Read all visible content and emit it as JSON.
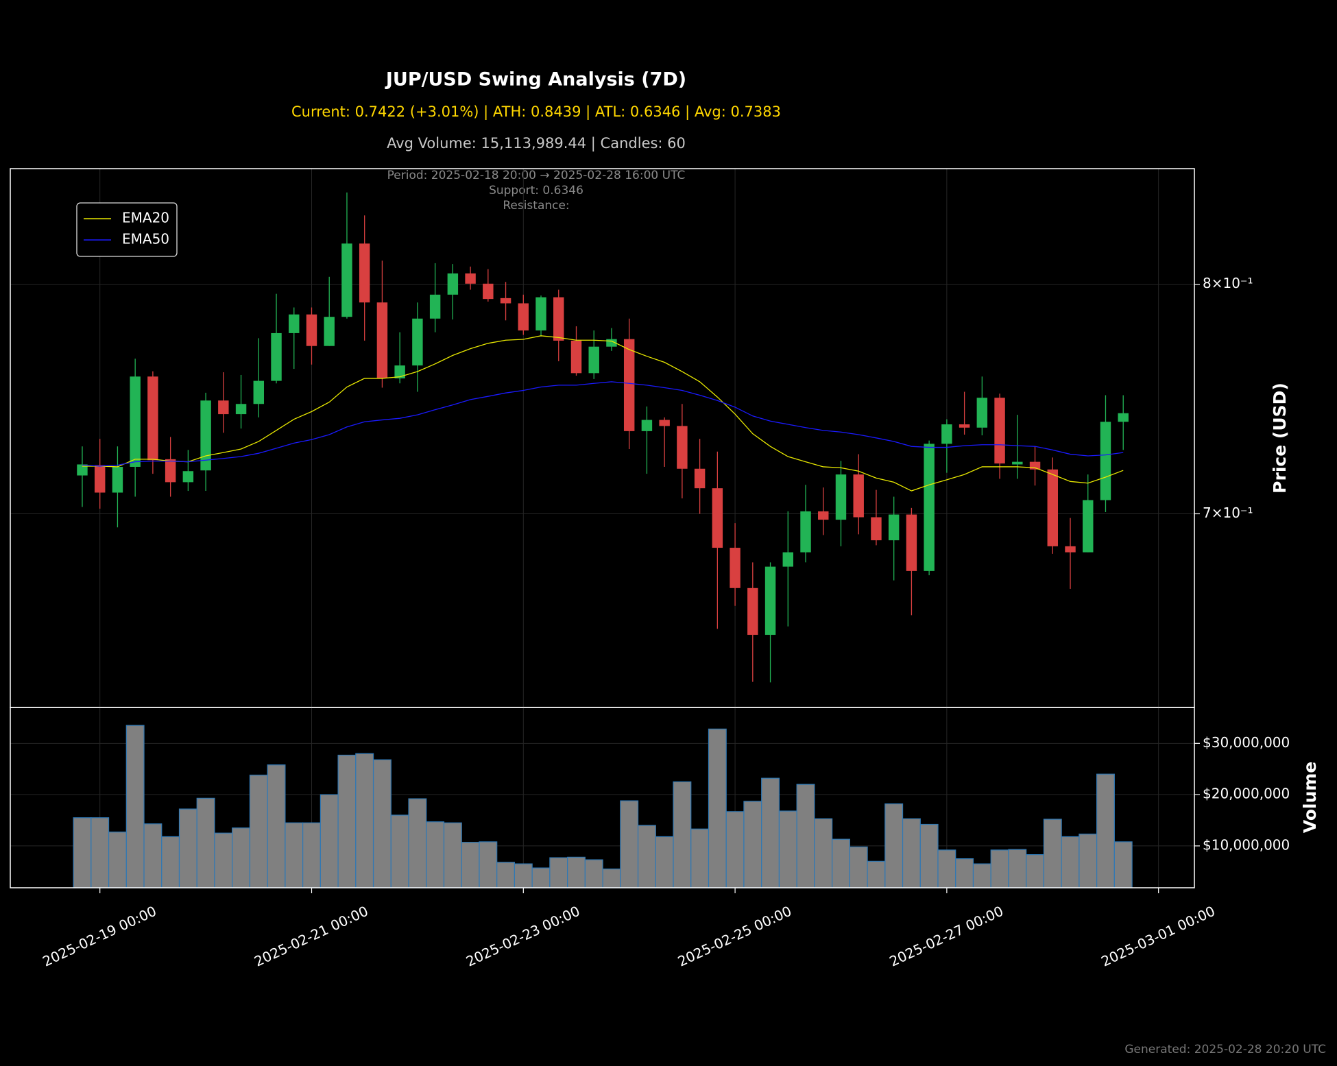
{
  "chart_data": [
    {
      "type": "candlestick",
      "title": "JUP/USD Swing Analysis (7D)",
      "subtitle": "Current: 0.7422 (+3.01%) | ATH: 0.8439 | ATL: 0.6346 | Avg: 0.7383",
      "subtitle2": "Avg Volume: 15,113,989.44 | Candles: 60",
      "annotations": [
        "Period: 2025-02-18 20:00 → 2025-02-28 16:00 UTC",
        "Support: 0.6346",
        "Resistance:"
      ],
      "footnote": "Generated: 2025-02-28 20:20 UTC",
      "ylabel": "Price (USD)",
      "x": [
        "2025-02-18 20:00",
        "2025-02-19 00:00",
        "2025-02-19 04:00",
        "2025-02-19 08:00",
        "2025-02-19 12:00",
        "2025-02-19 16:00",
        "2025-02-19 20:00",
        "2025-02-20 00:00",
        "2025-02-20 04:00",
        "2025-02-20 08:00",
        "2025-02-20 12:00",
        "2025-02-20 16:00",
        "2025-02-20 20:00",
        "2025-02-21 00:00",
        "2025-02-21 04:00",
        "2025-02-21 08:00",
        "2025-02-21 12:00",
        "2025-02-21 16:00",
        "2025-02-21 20:00",
        "2025-02-22 00:00",
        "2025-02-22 04:00",
        "2025-02-22 08:00",
        "2025-02-22 12:00",
        "2025-02-22 16:00",
        "2025-02-22 20:00",
        "2025-02-23 00:00",
        "2025-02-23 04:00",
        "2025-02-23 08:00",
        "2025-02-23 12:00",
        "2025-02-23 16:00",
        "2025-02-23 20:00",
        "2025-02-24 00:00",
        "2025-02-24 04:00",
        "2025-02-24 08:00",
        "2025-02-24 12:00",
        "2025-02-24 16:00",
        "2025-02-24 20:00",
        "2025-02-25 00:00",
        "2025-02-25 04:00",
        "2025-02-25 08:00",
        "2025-02-25 12:00",
        "2025-02-25 16:00",
        "2025-02-25 20:00",
        "2025-02-26 00:00",
        "2025-02-26 04:00",
        "2025-02-26 08:00",
        "2025-02-26 12:00",
        "2025-02-26 16:00",
        "2025-02-26 20:00",
        "2025-02-27 00:00",
        "2025-02-27 04:00",
        "2025-02-27 08:00",
        "2025-02-27 12:00",
        "2025-02-27 16:00",
        "2025-02-27 20:00",
        "2025-02-28 00:00",
        "2025-02-28 04:00",
        "2025-02-28 08:00",
        "2025-02-28 12:00",
        "2025-02-28 16:00"
      ],
      "open": [
        0.7158,
        0.7201,
        0.7087,
        0.7194,
        0.7582,
        0.7226,
        0.713,
        0.7179,
        0.7477,
        0.7418,
        0.7462,
        0.7563,
        0.7776,
        0.7861,
        0.7718,
        0.785,
        0.8192,
        0.7916,
        0.7574,
        0.7631,
        0.7842,
        0.7952,
        0.8051,
        0.8003,
        0.7936,
        0.7912,
        0.7788,
        0.794,
        0.7742,
        0.7597,
        0.7715,
        0.7749,
        0.7345,
        0.7393,
        0.7367,
        0.7186,
        0.7105,
        0.6863,
        0.6704,
        0.6524,
        0.6788,
        0.6845,
        0.701,
        0.6976,
        0.7162,
        0.6986,
        0.6893,
        0.6997,
        0.6771,
        0.7291,
        0.7374,
        0.736,
        0.7489,
        0.7204,
        0.7215,
        0.7183,
        0.6869,
        0.6845,
        0.7056,
        0.7385
      ],
      "high": [
        0.728,
        0.7312,
        0.728,
        0.7661,
        0.7605,
        0.732,
        0.7265,
        0.7511,
        0.7601,
        0.7589,
        0.7753,
        0.7956,
        0.7893,
        0.7893,
        0.8035,
        0.8439,
        0.8327,
        0.8111,
        0.778,
        0.7916,
        0.8099,
        0.8095,
        0.8083,
        0.8071,
        0.8011,
        0.7952,
        0.7948,
        0.7975,
        0.7807,
        0.7788,
        0.7799,
        0.7842,
        0.7451,
        0.7404,
        0.7462,
        0.7312,
        0.7258,
        0.6962,
        0.6805,
        0.6805,
        0.701,
        0.7119,
        0.7108,
        0.7219,
        0.7247,
        0.7098,
        0.707,
        0.7024,
        0.7305,
        0.7396,
        0.7515,
        0.7582,
        0.7507,
        0.7415,
        0.728,
        0.7233,
        0.6983,
        0.7162,
        0.75,
        0.75
      ],
      "low": [
        0.7028,
        0.7021,
        0.6945,
        0.707,
        0.7165,
        0.707,
        0.7094,
        0.7094,
        0.7338,
        0.7356,
        0.7404,
        0.7552,
        0.7616,
        0.7635,
        0.7718,
        0.7842,
        0.7742,
        0.7533,
        0.7552,
        0.7515,
        0.778,
        0.7838,
        0.7975,
        0.792,
        0.7834,
        0.7768,
        0.7761,
        0.765,
        0.7586,
        0.7571,
        0.7696,
        0.7269,
        0.7165,
        0.7194,
        0.7063,
        0.7,
        0.6547,
        0.6635,
        0.6348,
        0.6346,
        0.6556,
        0.6805,
        0.6914,
        0.6869,
        0.6917,
        0.6873,
        0.6734,
        0.6599,
        0.6754,
        0.7169,
        0.733,
        0.7327,
        0.7144,
        0.7144,
        0.7116,
        0.6839,
        0.6701,
        0.6845,
        0.7007,
        0.7265
      ],
      "close": [
        0.7204,
        0.7087,
        0.7194,
        0.7582,
        0.7222,
        0.713,
        0.7176,
        0.7477,
        0.7418,
        0.7462,
        0.7563,
        0.7776,
        0.7861,
        0.7718,
        0.785,
        0.8192,
        0.7916,
        0.7574,
        0.7631,
        0.7842,
        0.7952,
        0.8051,
        0.8003,
        0.7932,
        0.7912,
        0.7788,
        0.794,
        0.7742,
        0.7597,
        0.7715,
        0.7749,
        0.7345,
        0.7393,
        0.7367,
        0.7186,
        0.7105,
        0.6863,
        0.6704,
        0.6524,
        0.6788,
        0.6845,
        0.701,
        0.6976,
        0.7162,
        0.6986,
        0.6893,
        0.6997,
        0.6771,
        0.7291,
        0.7374,
        0.736,
        0.7489,
        0.7208,
        0.7215,
        0.7183,
        0.6869,
        0.6845,
        0.7056,
        0.7385,
        0.7422
      ],
      "up_color": "#22b455",
      "down_color": "#d94040",
      "series": [
        {
          "name": "EMA20",
          "color": "#e8e800",
          "values": [
            0.7197,
            0.7197,
            0.7194,
            0.7226,
            0.7226,
            0.7218,
            0.7215,
            0.724,
            0.7254,
            0.7269,
            0.7301,
            0.7348,
            0.7396,
            0.7429,
            0.747,
            0.7536,
            0.7574,
            0.7574,
            0.7581,
            0.7604,
            0.7638,
            0.7676,
            0.7706,
            0.773,
            0.7744,
            0.7748,
            0.7764,
            0.7756,
            0.7744,
            0.7744,
            0.774,
            0.7702,
            0.7672,
            0.7645,
            0.7604,
            0.7559,
            0.7492,
            0.7418,
            0.7334,
            0.728,
            0.7237,
            0.7215,
            0.7194,
            0.719,
            0.7176,
            0.7147,
            0.713,
            0.7094,
            0.7119,
            0.714,
            0.7162,
            0.7194,
            0.7194,
            0.7194,
            0.719,
            0.7162,
            0.7133,
            0.7126,
            0.7151,
            0.7179
          ]
        },
        {
          "name": "EMA50",
          "color": "#1a1aff",
          "values": [
            0.7201,
            0.7197,
            0.7201,
            0.7215,
            0.7218,
            0.7218,
            0.7215,
            0.7222,
            0.7229,
            0.7237,
            0.7251,
            0.7272,
            0.7294,
            0.7309,
            0.733,
            0.7363,
            0.7385,
            0.7393,
            0.74,
            0.7415,
            0.7437,
            0.7458,
            0.7481,
            0.7495,
            0.751,
            0.7521,
            0.7536,
            0.7544,
            0.7544,
            0.7552,
            0.7559,
            0.7552,
            0.7544,
            0.7533,
            0.7521,
            0.75,
            0.7477,
            0.7448,
            0.741,
            0.7388,
            0.7374,
            0.736,
            0.7348,
            0.7341,
            0.733,
            0.7316,
            0.7301,
            0.728,
            0.7276,
            0.7276,
            0.7283,
            0.7287,
            0.7287,
            0.7283,
            0.728,
            0.7265,
            0.7247,
            0.724,
            0.7244,
            0.7254
          ]
        }
      ],
      "xlim": [
        "2025-02-18 03:41",
        "2025-03-01 08:08"
      ],
      "ylim": [
        0.6254,
        0.8557
      ],
      "log_y": true,
      "yticks": [
        {
          "value": 0.8,
          "label": "8×10⁻¹"
        },
        {
          "value": 0.7,
          "label": "7×10⁻¹"
        }
      ],
      "grid": true,
      "legend": "upper left"
    },
    {
      "type": "bar",
      "ylabel": "Volume",
      "x": [
        "2025-02-18 20:00",
        "2025-02-19 00:00",
        "2025-02-19 04:00",
        "2025-02-19 08:00",
        "2025-02-19 12:00",
        "2025-02-19 16:00",
        "2025-02-19 20:00",
        "2025-02-20 00:00",
        "2025-02-20 04:00",
        "2025-02-20 08:00",
        "2025-02-20 12:00",
        "2025-02-20 16:00",
        "2025-02-20 20:00",
        "2025-02-21 00:00",
        "2025-02-21 04:00",
        "2025-02-21 08:00",
        "2025-02-21 12:00",
        "2025-02-21 16:00",
        "2025-02-21 20:00",
        "2025-02-22 00:00",
        "2025-02-22 04:00",
        "2025-02-22 08:00",
        "2025-02-22 12:00",
        "2025-02-22 16:00",
        "2025-02-22 20:00",
        "2025-02-23 00:00",
        "2025-02-23 04:00",
        "2025-02-23 08:00",
        "2025-02-23 12:00",
        "2025-02-23 16:00",
        "2025-02-23 20:00",
        "2025-02-24 00:00",
        "2025-02-24 04:00",
        "2025-02-24 08:00",
        "2025-02-24 12:00",
        "2025-02-24 16:00",
        "2025-02-24 20:00",
        "2025-02-25 00:00",
        "2025-02-25 04:00",
        "2025-02-25 08:00",
        "2025-02-25 12:00",
        "2025-02-25 16:00",
        "2025-02-25 20:00",
        "2025-02-26 00:00",
        "2025-02-26 04:00",
        "2025-02-26 08:00",
        "2025-02-26 12:00",
        "2025-02-26 16:00",
        "2025-02-26 20:00",
        "2025-02-27 00:00",
        "2025-02-27 04:00",
        "2025-02-27 08:00",
        "2025-02-27 12:00",
        "2025-02-27 16:00",
        "2025-02-27 20:00",
        "2025-02-28 00:00",
        "2025-02-28 04:00",
        "2025-02-28 08:00",
        "2025-02-28 12:00",
        "2025-02-28 16:00"
      ],
      "values": [
        15500000,
        15500000,
        12700000,
        33500000,
        14300000,
        11800000,
        17200000,
        19300000,
        12500000,
        13500000,
        23800000,
        25800000,
        14500000,
        14500000,
        20000000,
        27700000,
        28000000,
        26800000,
        16000000,
        19200000,
        14700000,
        14500000,
        10700000,
        10800000,
        6800000,
        6500000,
        5700000,
        7700000,
        7800000,
        7300000,
        5500000,
        18800000,
        14000000,
        11800000,
        22500000,
        13300000,
        32800000,
        16700000,
        18700000,
        23200000,
        16800000,
        22000000,
        15300000,
        11300000,
        9800000,
        7000000,
        18200000,
        15300000,
        14200000,
        9200000,
        7500000,
        6500000,
        9200000,
        9300000,
        8300000,
        15200000,
        11800000,
        12300000,
        24000000,
        10800000
      ],
      "color": "#808080",
      "edge_color": "#2f78b4",
      "xlim": [
        "2025-02-18 03:41",
        "2025-03-01 08:08"
      ],
      "xticks": [
        "2025-02-19 00:00",
        "2025-02-21 00:00",
        "2025-02-23 00:00",
        "2025-02-25 00:00",
        "2025-02-27 00:00",
        "2025-03-01 00:00"
      ],
      "ylim": [
        1833333,
        37000000
      ],
      "yticks": [
        {
          "value": 30000000,
          "label": "$30,000,000"
        },
        {
          "value": 20000000,
          "label": "$20,000,000"
        },
        {
          "value": 10000000,
          "label": "$10,000,000"
        }
      ],
      "grid": true
    }
  ]
}
